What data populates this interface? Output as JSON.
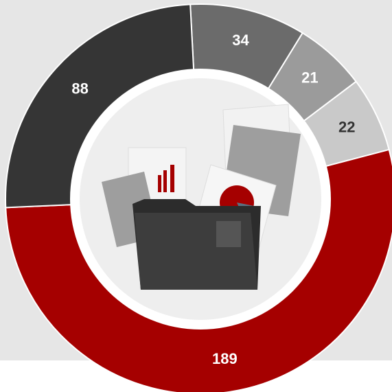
{
  "chart_data": {
    "type": "donut",
    "values": [
      34,
      21,
      22,
      189,
      88
    ],
    "colors": [
      "#6b6b6b",
      "#9b9b9b",
      "#c9c9c9",
      "#a50000",
      "#353535"
    ],
    "label_colors": [
      "#ffffff",
      "#ffffff",
      "#333333",
      "#ffffff",
      "#ffffff"
    ]
  }
}
